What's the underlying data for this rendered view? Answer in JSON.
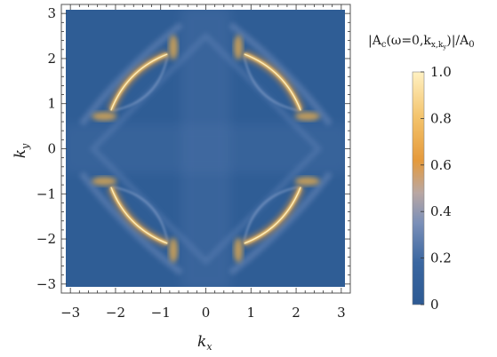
{
  "chart_data": {
    "type": "heatmap",
    "title": "",
    "xlabel": "k",
    "xlabel_sub": "x",
    "ylabel": "k",
    "ylabel_sub": "y",
    "xlim": [
      -3.2,
      3.2
    ],
    "ylim": [
      -3.2,
      3.2
    ],
    "x_ticks": [
      -3,
      -2,
      -1,
      0,
      1,
      2,
      3
    ],
    "y_ticks": [
      -3,
      -2,
      -1,
      0,
      1,
      2,
      3
    ],
    "x_tick_labels": [
      "−3",
      "−2",
      "−1",
      "0",
      "1",
      "2",
      "3"
    ],
    "y_tick_labels": [
      "−3",
      "−2",
      "−1",
      "0",
      "1",
      "2",
      "3"
    ],
    "data_extent": [
      -3.14,
      3.14
    ],
    "colorbar": {
      "title_parts": [
        "|A",
        "c",
        "(ω=0,k",
        "x,k",
        "y",
        ")|/A",
        "0"
      ],
      "range": [
        0,
        1
      ],
      "ticks": [
        0,
        0.2,
        0.4,
        0.6,
        0.8,
        1.0
      ],
      "tick_labels": [
        "0",
        "0.2",
        "0.4",
        "0.6",
        "0.8",
        "1.0"
      ],
      "colors": [
        "#2d5a93",
        "#3a66a0",
        "#7a8fb8",
        "#b9a7a3",
        "#e59a3c",
        "#f3c26a",
        "#fff1c2"
      ]
    },
    "background_value": 0.03,
    "features": [
      {
        "name": "arc",
        "quadrant": [
          1,
          1
        ],
        "peak": 1.0
      },
      {
        "name": "arc",
        "quadrant": [
          -1,
          1
        ],
        "peak": 1.0
      },
      {
        "name": "arc",
        "quadrant": [
          1,
          -1
        ],
        "peak": 1.0
      },
      {
        "name": "arc",
        "quadrant": [
          -1,
          -1
        ],
        "peak": 1.0
      },
      {
        "name": "hot-spot",
        "at": [
          2.3,
          0.7
        ],
        "peak": 0.85
      },
      {
        "name": "hot-spot",
        "at": [
          0.7,
          2.3
        ],
        "peak": 0.85
      }
    ]
  }
}
